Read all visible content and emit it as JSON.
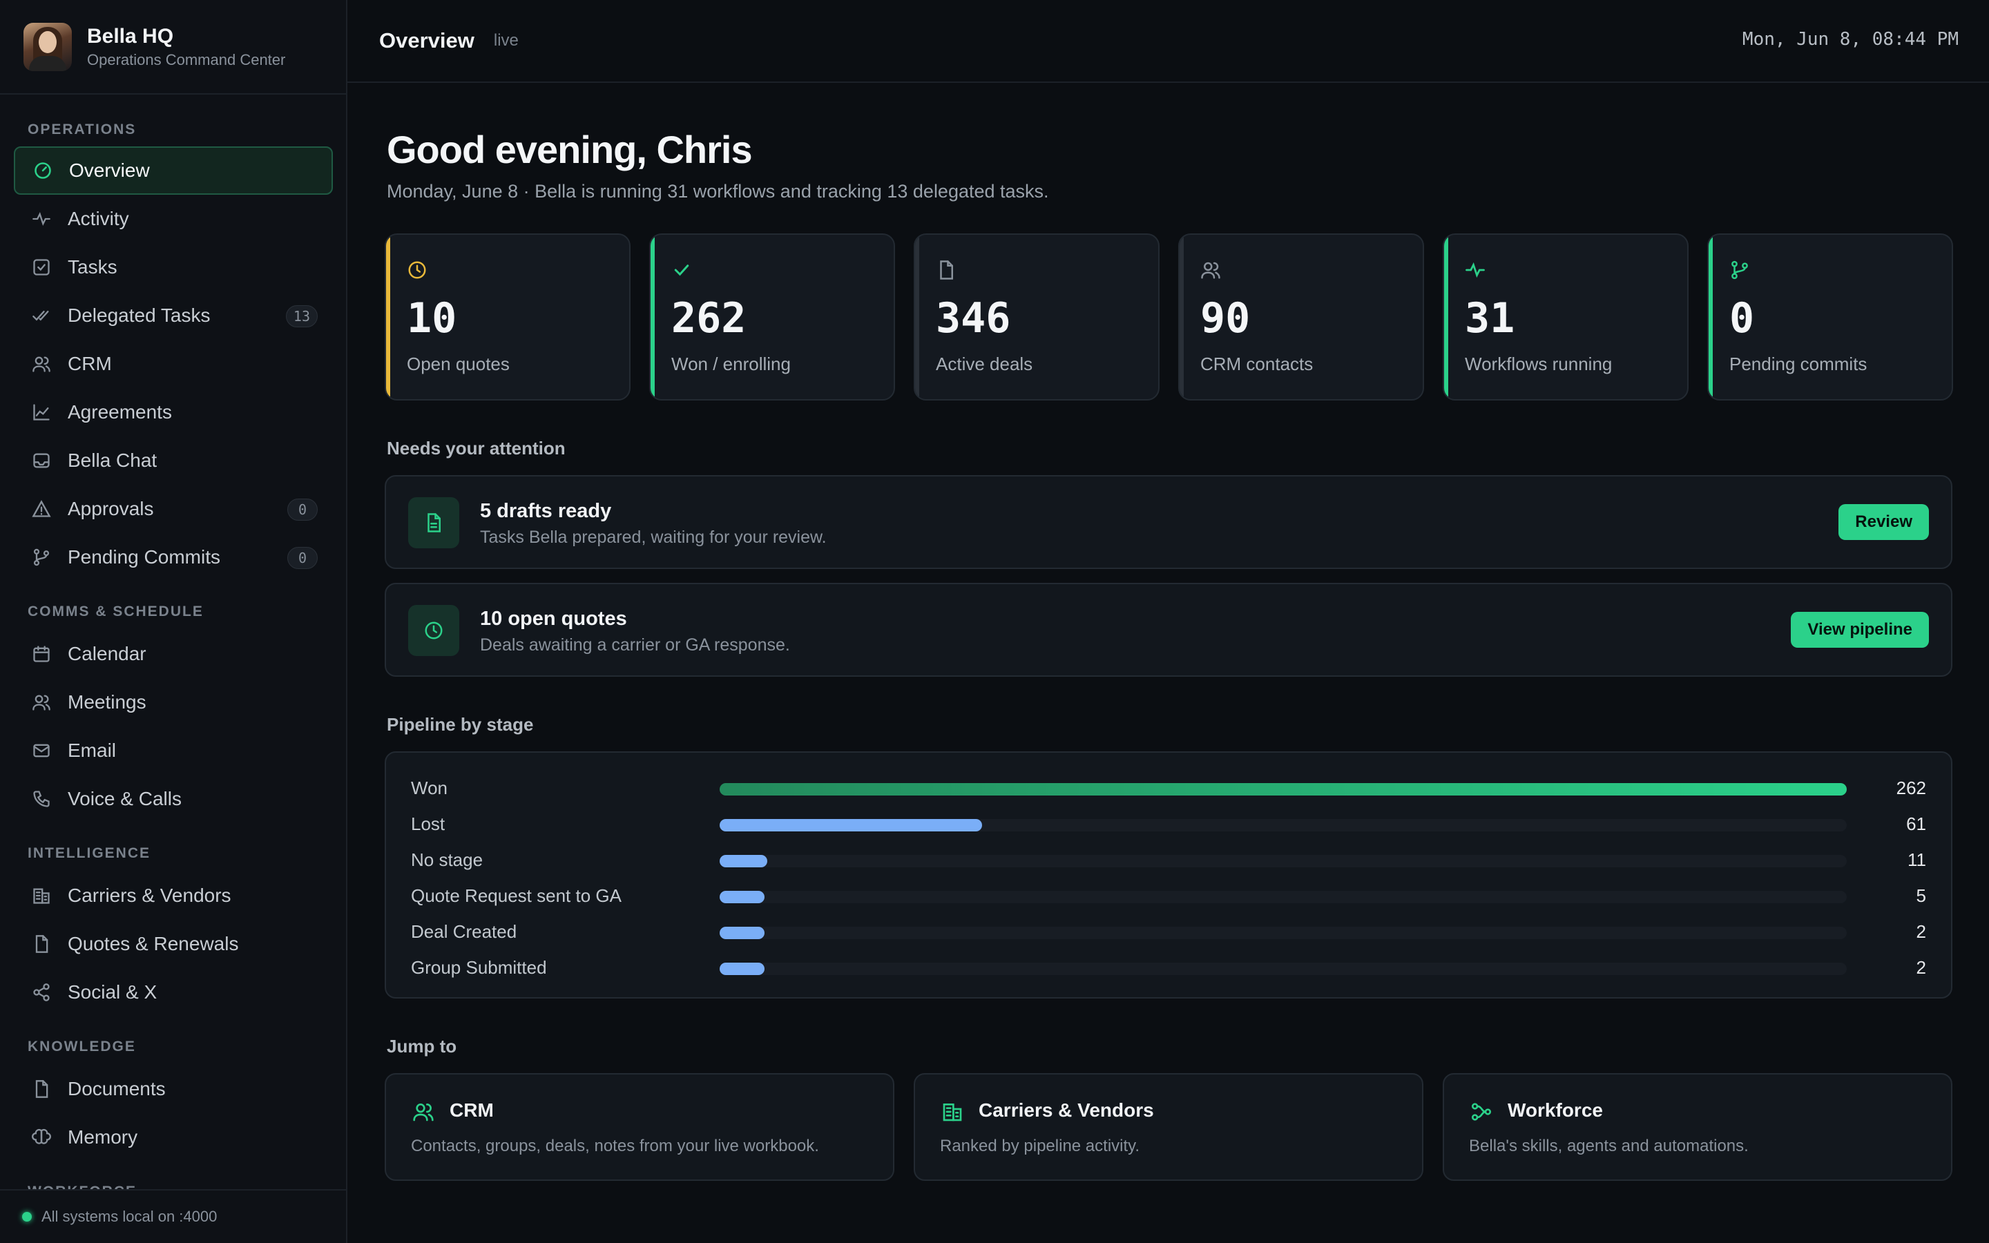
{
  "brand": {
    "title": "Bella HQ",
    "subtitle": "Operations Command Center"
  },
  "sidebar": {
    "sections": [
      {
        "title": "OPERATIONS",
        "items": [
          {
            "label": "Overview",
            "icon": "gauge-icon",
            "active": true
          },
          {
            "label": "Activity",
            "icon": "pulse-icon"
          },
          {
            "label": "Tasks",
            "icon": "checkbox-icon"
          },
          {
            "label": "Delegated Tasks",
            "icon": "double-check-icon",
            "badge": "13"
          },
          {
            "label": "CRM",
            "icon": "users-icon"
          },
          {
            "label": "Agreements",
            "icon": "chart-line-icon"
          },
          {
            "label": "Bella Chat",
            "icon": "inbox-icon"
          },
          {
            "label": "Approvals",
            "icon": "warning-icon",
            "badge": "0"
          },
          {
            "label": "Pending Commits",
            "icon": "git-branch-icon",
            "badge": "0"
          }
        ]
      },
      {
        "title": "COMMS & SCHEDULE",
        "items": [
          {
            "label": "Calendar",
            "icon": "calendar-icon"
          },
          {
            "label": "Meetings",
            "icon": "users-icon"
          },
          {
            "label": "Email",
            "icon": "mail-icon"
          },
          {
            "label": "Voice & Calls",
            "icon": "phone-icon"
          }
        ]
      },
      {
        "title": "INTELLIGENCE",
        "items": [
          {
            "label": "Carriers & Vendors",
            "icon": "building-icon"
          },
          {
            "label": "Quotes & Renewals",
            "icon": "file-icon"
          },
          {
            "label": "Social & X",
            "icon": "share-icon"
          }
        ]
      },
      {
        "title": "KNOWLEDGE",
        "items": [
          {
            "label": "Documents",
            "icon": "file-icon"
          },
          {
            "label": "Memory",
            "icon": "brain-icon"
          }
        ]
      },
      {
        "title": "WORKFORCE",
        "items": []
      }
    ],
    "footer": "All systems local on :4000"
  },
  "topbar": {
    "title": "Overview",
    "status": "live",
    "clock": "Mon, Jun 8, 08:44 PM"
  },
  "greeting": {
    "title": "Good evening, Chris",
    "subtitle": "Monday, June 8 · Bella is running 31 workflows and tracking 13 delegated tasks."
  },
  "stats": [
    {
      "value": "10",
      "label": "Open quotes",
      "icon": "clock-icon",
      "accent": "#e9b93a"
    },
    {
      "value": "262",
      "label": "Won / enrolling",
      "icon": "check-icon",
      "accent": "#2bd18a"
    },
    {
      "value": "346",
      "label": "Active deals",
      "icon": "file-icon",
      "accent": "#2a3038"
    },
    {
      "value": "90",
      "label": "CRM contacts",
      "icon": "users-icon",
      "accent": "#2a3038"
    },
    {
      "value": "31",
      "label": "Workflows running",
      "icon": "pulse-icon",
      "accent": "#2bd18a"
    },
    {
      "value": "0",
      "label": "Pending commits",
      "icon": "git-branch-icon",
      "accent": "#2bd18a"
    }
  ],
  "attention": {
    "heading": "Needs your attention",
    "items": [
      {
        "title": "5 drafts ready",
        "desc": "Tasks Bella prepared, waiting for your review.",
        "button": "Review",
        "icon": "file-icon"
      },
      {
        "title": "10 open quotes",
        "desc": "Deals awaiting a carrier or GA response.",
        "button": "View pipeline",
        "icon": "clock-icon"
      }
    ]
  },
  "pipeline": {
    "heading": "Pipeline by stage",
    "stages": [
      {
        "label": "Won",
        "value": 262
      },
      {
        "label": "Lost",
        "value": 61
      },
      {
        "label": "No stage",
        "value": 11
      },
      {
        "label": "Quote Request sent to GA",
        "value": 5
      },
      {
        "label": "Deal Created",
        "value": 2
      },
      {
        "label": "Group Submitted",
        "value": 2
      }
    ]
  },
  "jump": {
    "heading": "Jump to",
    "items": [
      {
        "title": "CRM",
        "desc": "Contacts, groups, deals, notes from your live workbook.",
        "icon": "users-icon"
      },
      {
        "title": "Carriers & Vendors",
        "desc": "Ranked by pipeline activity.",
        "icon": "building-icon"
      },
      {
        "title": "Workforce",
        "desc": "Bella's skills, agents and automations.",
        "icon": "workflow-icon"
      }
    ]
  },
  "colors": {
    "accent": "#2bd18a",
    "bar": "#7aaef7",
    "warning": "#e9b93a"
  }
}
